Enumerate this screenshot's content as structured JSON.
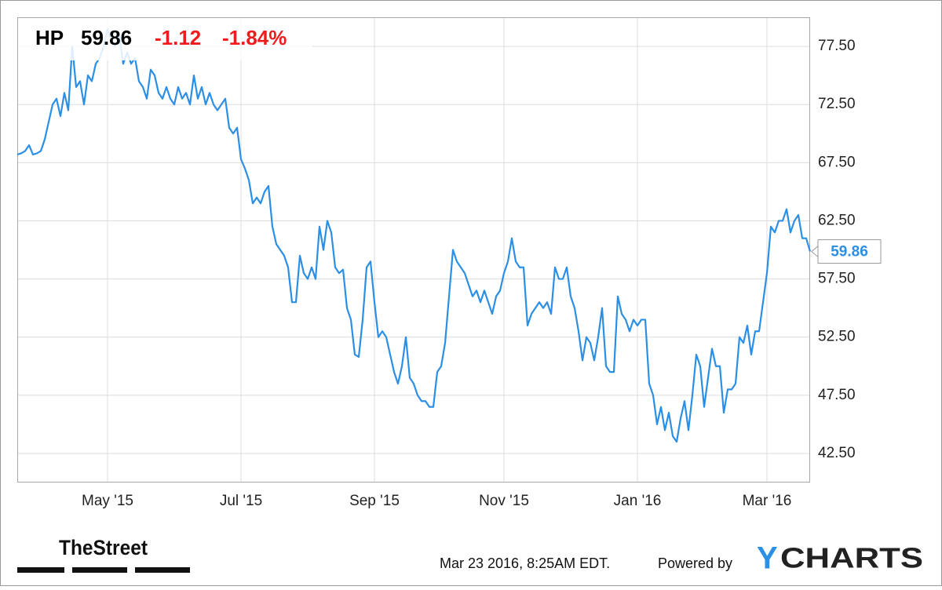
{
  "chart_data": {
    "type": "line",
    "title": "HP",
    "change_label": "-1.12",
    "change_pct_label": "-1.84%",
    "color": "#2b8fe6",
    "categories": [
      null,
      null,
      null,
      null,
      null,
      null,
      null,
      null,
      null,
      null,
      null,
      null,
      null,
      null,
      null,
      null,
      null,
      null,
      null,
      null,
      null,
      null,
      null,
      "May '15",
      null,
      null,
      null,
      null,
      null,
      null,
      null,
      null,
      null,
      null,
      null,
      null,
      null,
      null,
      null,
      null,
      null,
      null,
      null,
      null,
      null,
      null,
      null,
      null,
      null,
      null,
      null,
      null,
      null,
      null,
      null,
      null,
      null,
      "Jul '15",
      null,
      null,
      null,
      null,
      null,
      null,
      null,
      null,
      null,
      null,
      null,
      null,
      null,
      null,
      null,
      null,
      null,
      null,
      null,
      null,
      null,
      null,
      null,
      null,
      null,
      null,
      null,
      null,
      null,
      null,
      null,
      null,
      null,
      "Sep '15",
      null,
      null,
      null,
      null,
      null,
      null,
      null,
      null,
      null,
      null,
      null,
      null,
      null,
      null,
      null,
      null,
      null,
      null,
      null,
      null,
      null,
      null,
      null,
      null,
      null,
      null,
      null,
      null,
      null,
      null,
      null,
      null,
      "Nov '15",
      null,
      null,
      null,
      null,
      null,
      null,
      null,
      null,
      null,
      null,
      null,
      null,
      null,
      null,
      null,
      null,
      null,
      null,
      null,
      null,
      null,
      null,
      null,
      null,
      null,
      null,
      null,
      null,
      null,
      null,
      null,
      null,
      null,
      "Jan '16",
      null,
      null,
      null,
      null,
      null,
      null,
      null,
      null,
      null,
      null,
      null,
      null,
      null,
      null,
      null,
      null,
      null,
      null,
      null,
      null,
      null,
      null,
      null,
      null,
      null,
      null,
      null,
      null,
      null,
      null,
      null,
      null,
      "Mar '16",
      null,
      null,
      null,
      null,
      null,
      null,
      null,
      null,
      null,
      null,
      null
    ],
    "values": [
      68.2,
      68.3,
      68.5,
      69,
      68.2,
      68.3,
      68.5,
      69.5,
      71,
      72.5,
      73,
      71.5,
      73.5,
      72,
      77.5,
      74,
      74.5,
      72.5,
      75,
      74.5,
      76,
      76.5,
      77.5,
      79,
      78,
      77.5,
      78.5,
      76,
      77,
      76,
      76.5,
      74.5,
      74,
      73,
      75.5,
      75,
      73.5,
      73,
      74,
      73,
      72.5,
      74,
      73,
      73.5,
      72.5,
      75,
      73,
      74,
      72.5,
      73.5,
      72.5,
      72,
      72.5,
      73,
      70.5,
      70,
      70.5,
      67.8,
      67,
      66,
      64,
      64.5,
      64,
      65,
      65.5,
      62,
      60.5,
      60,
      59.5,
      58.5,
      55.5,
      55.5,
      59.5,
      58,
      57.5,
      58.5,
      57.5,
      62,
      60,
      62.5,
      61.5,
      58.5,
      58,
      58.3,
      55,
      54,
      51,
      50.8,
      54,
      58.5,
      59,
      55.5,
      52.5,
      53,
      52.5,
      51,
      49.5,
      48.5,
      50,
      52.5,
      49,
      48.5,
      47.5,
      47,
      47,
      46.5,
      46.5,
      49.5,
      50,
      52,
      56,
      60,
      59,
      58.5,
      58,
      57,
      56,
      56.5,
      55.5,
      56.5,
      55.5,
      54.5,
      56,
      56.5,
      58,
      59,
      61,
      59,
      58.5,
      58.5,
      53.5,
      54.5,
      55,
      55.5,
      55,
      55.5,
      54.5,
      58.5,
      57.5,
      57.5,
      58.5,
      56,
      55,
      53,
      50.5,
      52.5,
      52,
      50.5,
      52.5,
      55,
      50,
      49.5,
      49.5,
      56,
      54.5,
      54,
      53,
      54,
      53.5,
      54,
      54,
      48.5,
      47.5,
      45,
      46.5,
      44.5,
      46,
      44,
      43.5,
      45.5,
      47,
      44.5,
      47.5,
      51,
      50,
      46.5,
      49,
      51.5,
      50,
      50,
      46,
      48,
      48,
      48.5,
      52.5,
      52,
      53.5,
      51,
      53,
      53,
      55.5,
      58,
      62,
      61.5,
      62.5,
      62.5,
      63.5,
      61.5,
      62.5,
      63,
      61,
      61,
      59.86
    ],
    "ylim": [
      40,
      80
    ],
    "yticks": [
      {
        "value": 42.5,
        "label": "42.50"
      },
      {
        "value": 47.5,
        "label": "47.50"
      },
      {
        "value": 52.5,
        "label": "52.50"
      },
      {
        "value": 57.5,
        "label": "57.50"
      },
      {
        "value": 62.5,
        "label": "62.50"
      },
      {
        "value": 67.5,
        "label": "67.50"
      },
      {
        "value": 72.5,
        "label": "72.50"
      },
      {
        "value": 77.5,
        "label": "77.50"
      }
    ],
    "grid": true,
    "logo": "TheStreet",
    "timestamp": "Mar 23 2016, 8:25AM EDT.",
    "powered_by": "Powered by",
    "brand_mark": "Y",
    "brand_text": "CHARTS"
  }
}
